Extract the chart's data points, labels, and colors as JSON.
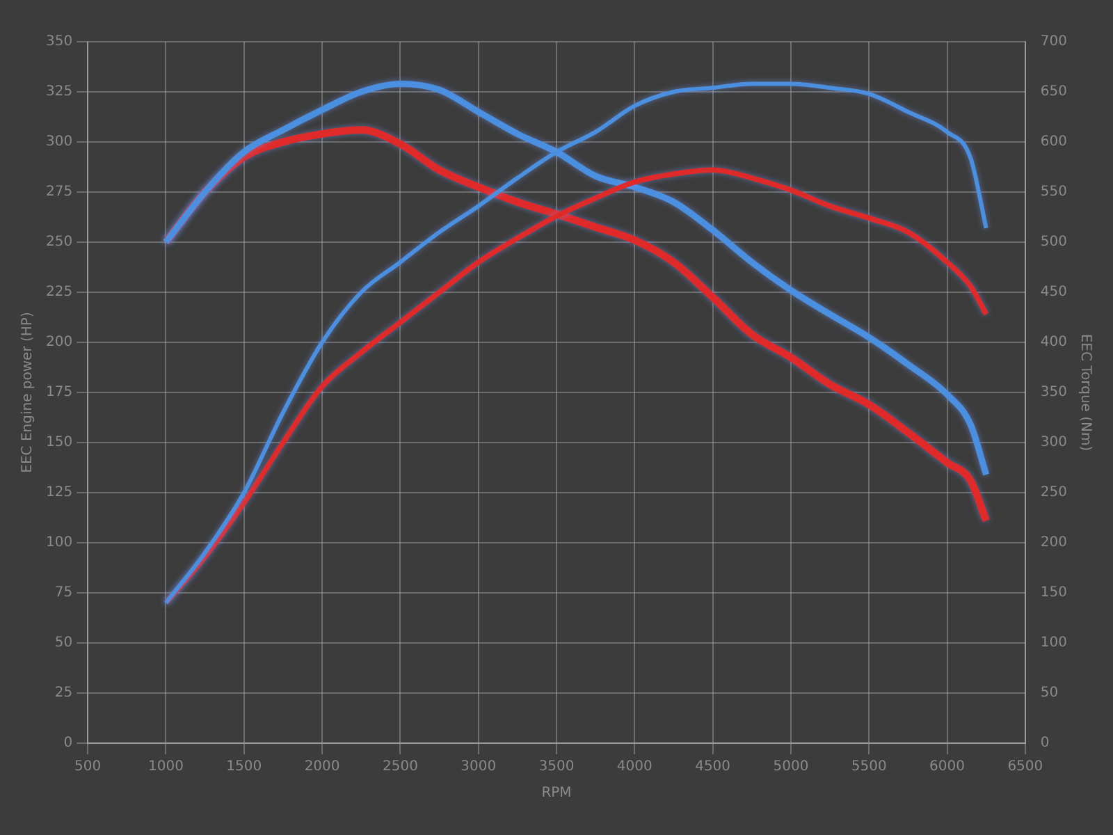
{
  "chart_data": {
    "type": "line",
    "xlabel": "RPM",
    "ylabel": "EEC Engine power (HP)",
    "y2label": "EEC Torque (Nm)",
    "x": [
      1000,
      1250,
      1500,
      1750,
      2000,
      2250,
      2500,
      2750,
      3000,
      3250,
      3500,
      3750,
      4000,
      4250,
      4500,
      4750,
      5000,
      5250,
      5500,
      5750,
      6000,
      6150,
      6250
    ],
    "series": [
      {
        "color": "#4a8fe0",
        "values": [
          70,
          95,
          125,
          165,
          200,
          225,
          240,
          255,
          268,
          282,
          295,
          305,
          318,
          325,
          327,
          329,
          329,
          327,
          324,
          315,
          305,
          292,
          257
        ]
      },
      {
        "color": "#e02a2a",
        "values": [
          70,
          93,
          120,
          150,
          178,
          195,
          210,
          225,
          240,
          252,
          263,
          272,
          280,
          284,
          286,
          282,
          276,
          268,
          262,
          255,
          240,
          228,
          214
        ]
      },
      {
        "color": "#4a8fe0",
        "axis": "y2",
        "values": [
          500,
          550,
          590,
          612,
          632,
          650,
          658,
          652,
          630,
          608,
          590,
          566,
          555,
          540,
          512,
          480,
          452,
          428,
          405,
          378,
          348,
          318,
          268
        ]
      },
      {
        "color": "#e02a2a",
        "axis": "y2",
        "values": [
          500,
          550,
          585,
          600,
          608,
          612,
          598,
          572,
          555,
          540,
          528,
          515,
          502,
          480,
          445,
          408,
          385,
          358,
          338,
          310,
          280,
          262,
          222
        ]
      }
    ],
    "xlim": [
      500,
      6500
    ],
    "xticks": [
      500,
      1000,
      1500,
      2000,
      2500,
      3000,
      3500,
      4000,
      4500,
      5000,
      5500,
      6000,
      6500
    ],
    "ylim": [
      0,
      350
    ],
    "yticks": [
      0,
      25,
      50,
      75,
      100,
      125,
      150,
      175,
      200,
      225,
      250,
      275,
      300,
      325,
      350
    ],
    "y2lim": [
      0,
      700
    ],
    "y2ticks": [
      0,
      50,
      100,
      150,
      200,
      250,
      300,
      350,
      400,
      450,
      500,
      550,
      600,
      650,
      700
    ],
    "grid": true,
    "legend": false,
    "marker": "none",
    "line_style": "solid"
  }
}
